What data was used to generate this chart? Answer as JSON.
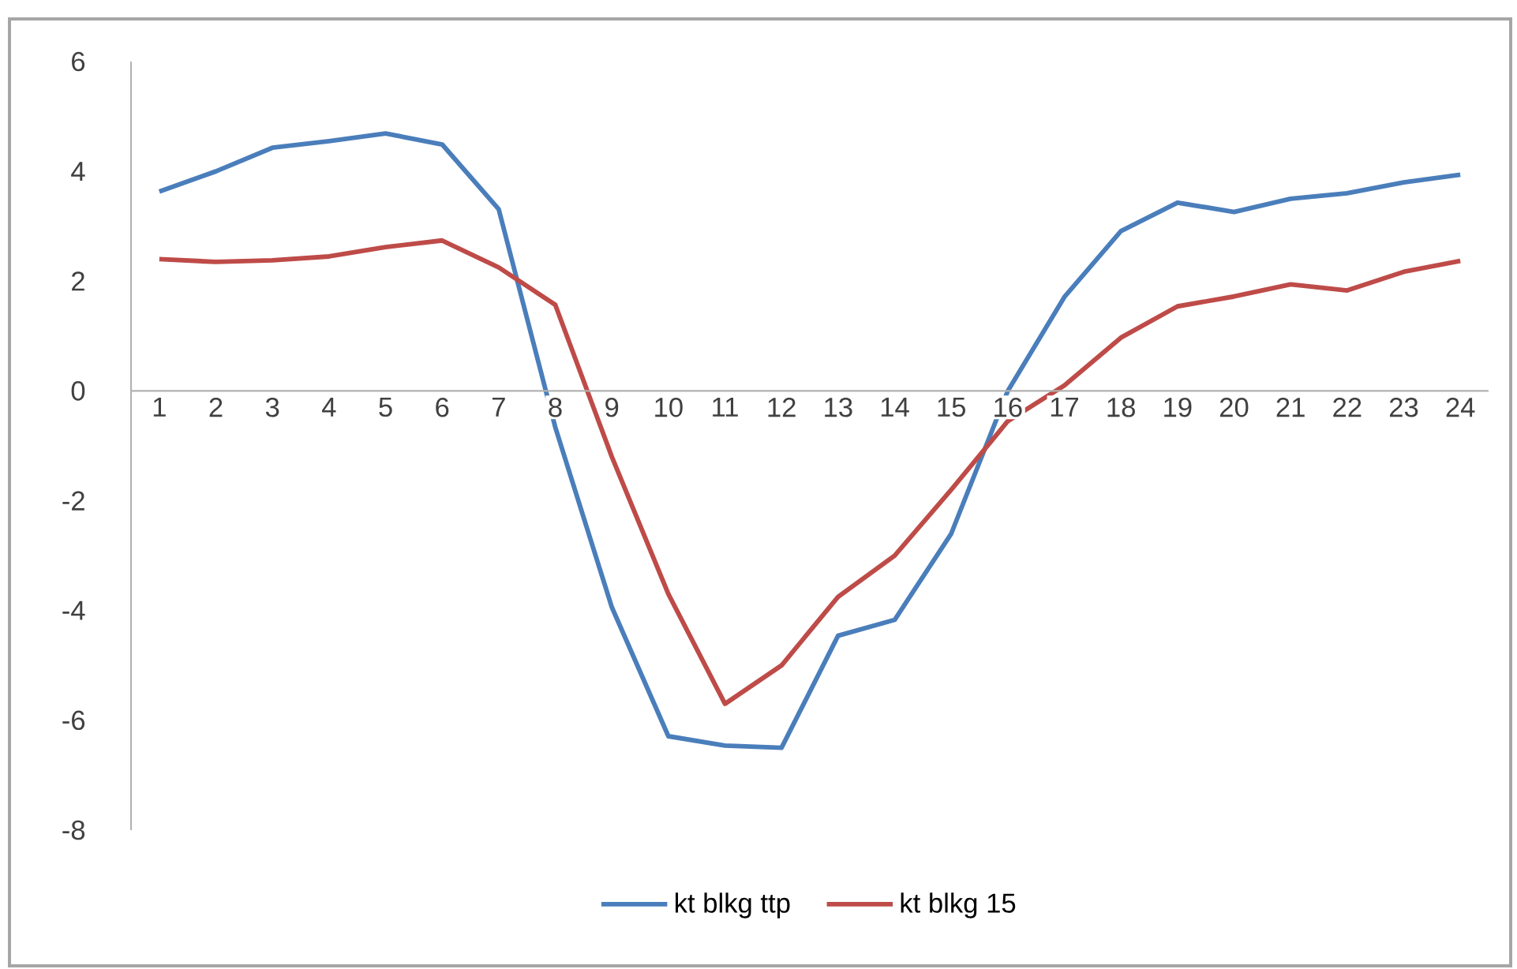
{
  "chart_data": {
    "type": "line",
    "categories": [
      "1",
      "2",
      "3",
      "4",
      "5",
      "6",
      "7",
      "8",
      "9",
      "10",
      "11",
      "12",
      "13",
      "14",
      "15",
      "16",
      "17",
      "18",
      "19",
      "20",
      "21",
      "22",
      "23",
      "24"
    ],
    "series": [
      {
        "name": "kt blkg ttp",
        "color": "#4a7ebb",
        "values": [
          3.63,
          4.0,
          4.43,
          4.55,
          4.69,
          4.49,
          3.31,
          -0.66,
          -3.94,
          -6.29,
          -6.46,
          -6.5,
          -4.46,
          -4.17,
          -2.6,
          0.0,
          1.71,
          2.91,
          3.43,
          3.26,
          3.5,
          3.6,
          3.8,
          3.94
        ]
      },
      {
        "name": "kt blkg 15",
        "color": "#be4b48",
        "values": [
          2.4,
          2.35,
          2.38,
          2.45,
          2.62,
          2.74,
          2.25,
          1.57,
          -1.2,
          -3.7,
          -5.7,
          -5.0,
          -3.75,
          -3.0,
          -1.8,
          -0.55,
          0.1,
          0.97,
          1.54,
          1.72,
          1.94,
          1.83,
          2.17,
          2.37
        ]
      }
    ],
    "ylim": [
      -8,
      6
    ],
    "yticks": [
      -8,
      -6,
      -4,
      -2,
      0,
      2,
      4,
      6
    ],
    "legend": "bottom",
    "grid": false,
    "marker": "none",
    "line_style": "solid"
  }
}
